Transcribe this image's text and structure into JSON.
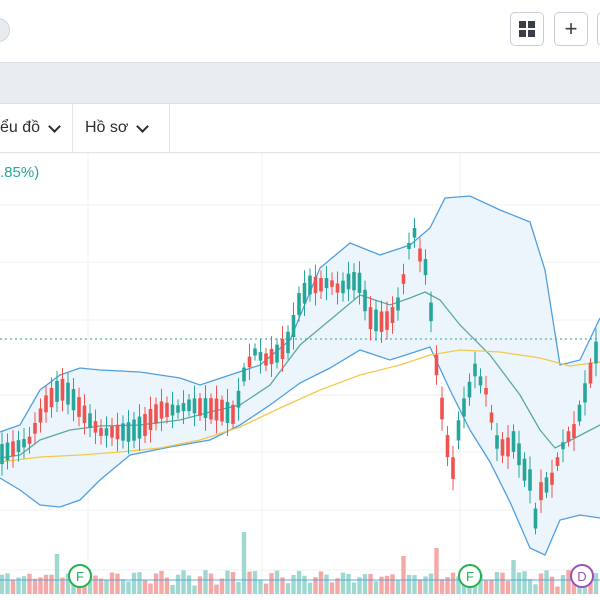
{
  "toolbar": {
    "layout_icon": "grid-2x2-icon",
    "add_icon": "plus-icon",
    "add_label": "+"
  },
  "menu": {
    "items": [
      {
        "label": "ểu đồ"
      },
      {
        "label": "Hồ sơ"
      }
    ]
  },
  "price_change": ".85%)",
  "colors": {
    "up": "#26a69a",
    "down": "#ef5350",
    "band": "#4f9fe0",
    "band_fill": "#e8f2fb",
    "middle": "#5aa9a0",
    "ma": "#f2c94c",
    "price_line": "#26a69a"
  },
  "event_markers": [
    {
      "label": "F",
      "kind": "earnings"
    },
    {
      "label": "F",
      "kind": "earnings"
    },
    {
      "label": "D",
      "kind": "dividend"
    }
  ],
  "chart_data": {
    "type": "candlestick",
    "indicators": [
      "Bollinger Bands (upper, middle, lower)",
      "Moving average",
      "Volume"
    ],
    "grid": true,
    "legend": "none"
  }
}
